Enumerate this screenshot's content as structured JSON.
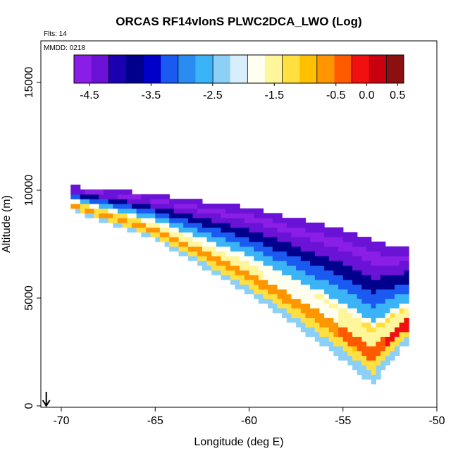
{
  "chart_data": {
    "type": "heatmap",
    "title": "ORCAS RF14vlonS PLWC2DCA_LWO (Log)",
    "flights_label": "Flts: 14",
    "date_label": "MMDD: 0218",
    "xlabel": "Longitude (deg E)",
    "ylabel": "Altitude (m)",
    "xlim": [
      -71,
      -50
    ],
    "ylim": [
      0,
      17000
    ],
    "x_ticks": [
      -70,
      -65,
      -60,
      -55,
      -50
    ],
    "y_ticks": [
      0,
      5000,
      10000,
      15000
    ],
    "grid": false,
    "colorbar": {
      "placement": "top-inside",
      "range": [
        -4.75,
        0.6
      ],
      "ticks": [
        -4.5,
        -3.5,
        -2.5,
        -1.5,
        -0.5,
        0.0,
        0.5
      ],
      "tick_labels": [
        "-4.5",
        "-3.5",
        "-2.5",
        "-1.5",
        "-0.5",
        "0.0",
        "0.5"
      ],
      "colors": [
        "#8a1ee6",
        "#6a12d6",
        "#1a00b0",
        "#00008c",
        "#0000c8",
        "#1a5af0",
        "#2a8cf0",
        "#3ab4f6",
        "#8cd0f8",
        "#d8eefc",
        "#fffff0",
        "#fff59a",
        "#ffe040",
        "#ffc000",
        "#ff9600",
        "#ff5a00",
        "#f01010",
        "#c80010",
        "#8c1010"
      ]
    },
    "field": {
      "description_free": true,
      "top_edge": [
        [
          -69.5,
          10200
        ],
        [
          -66,
          9900
        ],
        [
          -60,
          9200
        ],
        [
          -55,
          8200
        ],
        [
          -52.5,
          7400
        ]
      ],
      "bottom_edge": [
        [
          -69.5,
          9100
        ],
        [
          -65,
          7700
        ],
        [
          -60,
          5200
        ],
        [
          -56,
          2800
        ],
        [
          -53.4,
          1000
        ],
        [
          -51.8,
          2800
        ]
      ],
      "layers": [
        {
          "alt_top": 10200,
          "alt_bottom": 9400,
          "value": -4.3
        },
        {
          "alt_top": 9400,
          "alt_bottom": 8900,
          "value": -4.7
        },
        {
          "alt_top": 8900,
          "alt_bottom": 8300,
          "value": -4.2
        },
        {
          "alt_top": 8300,
          "alt_bottom": 7300,
          "value": -3.8
        },
        {
          "alt_top": 7300,
          "alt_bottom": 6500,
          "value": -3.3
        },
        {
          "alt_top": 6500,
          "alt_bottom": 5800,
          "value": -2.7
        },
        {
          "alt_top": 5800,
          "alt_bottom": 5200,
          "value": -1.6
        },
        {
          "alt_top": 5200,
          "alt_bottom": 4000,
          "value": -0.3
        },
        {
          "alt_top": 4000,
          "alt_bottom": 3000,
          "value": -1.4
        },
        {
          "alt_top": 3000,
          "alt_bottom": 1000,
          "value": -2.8
        }
      ]
    },
    "marker": {
      "type": "arrow-down",
      "x": -70.8,
      "y": 0
    }
  }
}
